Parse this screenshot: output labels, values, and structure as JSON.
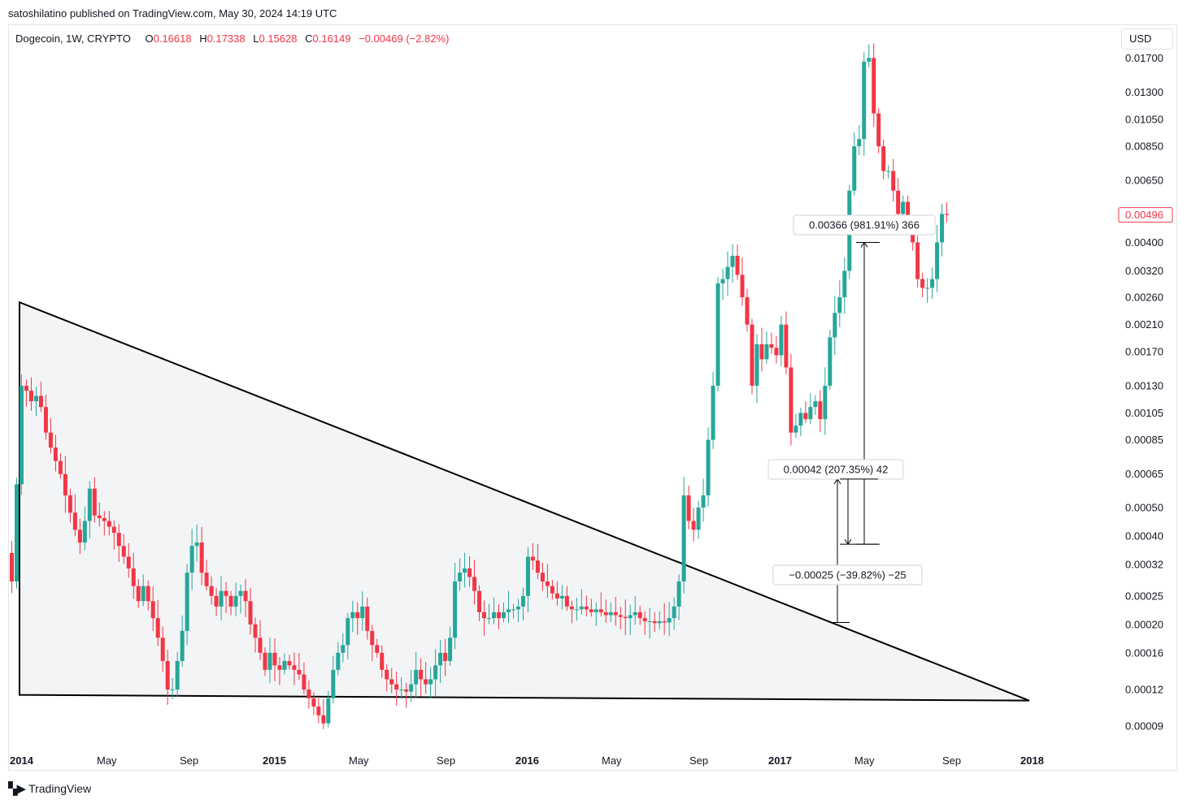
{
  "header": {
    "published": "satoshilatino published on TradingView.com, May 30, 2024 14:19 UTC"
  },
  "legend": {
    "symbol": "Dogecoin, 1W, CRYPTO",
    "o_label": "O",
    "o_value": "0.16618",
    "h_label": "H",
    "h_value": "0.17338",
    "l_label": "L",
    "l_value": "0.15628",
    "c_label": "C",
    "c_value": "0.16149",
    "change": "−0.00469 (−2.82%)"
  },
  "currency_button": "USD",
  "footer": {
    "brand": "TradingView",
    "brand_icon": "tradingview-logo-icon"
  },
  "colors": {
    "up": "#26a69a",
    "down": "#f23645",
    "drawing": "#000000",
    "triangle_fill": "#f3f4f6",
    "text": "#131722"
  },
  "chart_data": {
    "type": "candlestick",
    "title": "Dogecoin, 1W, CRYPTO",
    "y_scale": "log",
    "ylim": [
      8.4e-05,
      0.0185
    ],
    "y_ticks": [
      "0.01700",
      "0.01300",
      "0.01050",
      "0.00850",
      "0.00650",
      "0.00400",
      "0.00320",
      "0.00260",
      "0.00210",
      "0.00170",
      "0.00130",
      "0.00105",
      "0.00085",
      "0.00065",
      "0.00050",
      "0.00040",
      "0.00032",
      "0.00025",
      "0.00020",
      "0.00016",
      "0.00012",
      "0.00009"
    ],
    "x_ticks": [
      {
        "label": "2014",
        "year": true
      },
      {
        "label": "May",
        "year": false
      },
      {
        "label": "Sep",
        "year": false
      },
      {
        "label": "2015",
        "year": true
      },
      {
        "label": "May",
        "year": false
      },
      {
        "label": "Sep",
        "year": false
      },
      {
        "label": "2016",
        "year": true
      },
      {
        "label": "May",
        "year": false
      },
      {
        "label": "Sep",
        "year": false
      },
      {
        "label": "2017",
        "year": true
      },
      {
        "label": "May",
        "year": false
      },
      {
        "label": "Sep",
        "year": false
      },
      {
        "label": "2018",
        "year": true
      }
    ],
    "last_price_label": "0.00496",
    "triangle": {
      "points": [
        [
          "2014-01-06",
          0.0025
        ],
        [
          "2014-01-06",
          0.000115
        ],
        [
          "2018-01-01",
          0.00011
        ]
      ]
    },
    "measurements": [
      {
        "label": "0.00366 (981.91%) 366",
        "from": 0.000375,
        "to": 0.004
      },
      {
        "label": "0.00042 (207.35%) 42",
        "from": 0.000203,
        "to": 0.000625
      },
      {
        "label": "−0.00025 (−39.82%) −25",
        "from": 0.000625,
        "to": 0.000375
      }
    ],
    "weekly_closes": [
      0.00028,
      0.0006,
      0.0013,
      0.00125,
      0.00115,
      0.0012,
      0.0011,
      0.0009,
      0.0008,
      0.00072,
      0.00065,
      0.00055,
      0.00048,
      0.00042,
      0.00038,
      0.00045,
      0.00058,
      0.00047,
      0.00046,
      0.00045,
      0.00043,
      0.00041,
      0.00037,
      0.00034,
      0.00031,
      0.00027,
      0.00024,
      0.00027,
      0.00024,
      0.00021,
      0.00018,
      0.00015,
      0.00012,
      0.00012,
      0.00015,
      0.00019,
      0.0003,
      0.00037,
      0.00038,
      0.0003,
      0.00027,
      0.00025,
      0.00023,
      0.00026,
      0.00025,
      0.00023,
      0.00025,
      0.00026,
      0.00024,
      0.0002,
      0.00018,
      0.00016,
      0.00014,
      0.00016,
      0.000145,
      0.00014,
      0.00015,
      0.000145,
      0.00014,
      0.000135,
      0.00012,
      0.000112,
      0.000105,
      9.8e-05,
      9.2e-05,
      0.000112,
      0.00014,
      0.00016,
      0.00017,
      0.00021,
      0.00022,
      0.00021,
      0.00023,
      0.00019,
      0.00017,
      0.00016,
      0.00014,
      0.00013,
      0.000125,
      0.00012,
      0.00012,
      0.000118,
      0.000125,
      0.00014,
      0.00013,
      0.000125,
      0.00013,
      0.000145,
      0.00016,
      0.00015,
      0.00018,
      0.00028,
      0.0003,
      0.00031,
      0.00029,
      0.00026,
      0.00022,
      0.00021,
      0.00021,
      0.00022,
      0.00021,
      0.00022,
      0.000225,
      0.000225,
      0.00023,
      0.00025,
      0.00034,
      0.00033,
      0.0003,
      0.00028,
      0.00027,
      0.000255,
      0.000245,
      0.00025,
      0.00023,
      0.000225,
      0.000225,
      0.00023,
      0.000225,
      0.00022,
      0.000225,
      0.00022,
      0.000215,
      0.00022,
      0.000215,
      0.000212,
      0.00021,
      0.000215,
      0.00022,
      0.00021,
      0.000205,
      0.000205,
      0.000202,
      0.000205,
      0.000203,
      0.00021,
      0.00023,
      0.00028,
      0.00055,
      0.00045,
      0.00042,
      0.0005,
      0.00055,
      0.00085,
      0.0013,
      0.0029,
      0.003,
      0.0033,
      0.0036,
      0.0031,
      0.0026,
      0.0021,
      0.0013,
      0.0018,
      0.0016,
      0.0018,
      0.00175,
      0.00165,
      0.0021,
      0.0015,
      0.0009,
      0.00095,
      0.00105,
      0.001,
      0.0011,
      0.00115,
      0.001,
      0.0013,
      0.0019,
      0.0023,
      0.0026,
      0.0032,
      0.006,
      0.0085,
      0.009,
      0.0165,
      0.017,
      0.011,
      0.0085,
      0.007,
      0.007,
      0.006,
      0.005,
      0.0055,
      0.0045,
      0.004,
      0.003,
      0.0028,
      0.0028,
      0.003,
      0.004,
      0.005,
      0.00496
    ]
  }
}
